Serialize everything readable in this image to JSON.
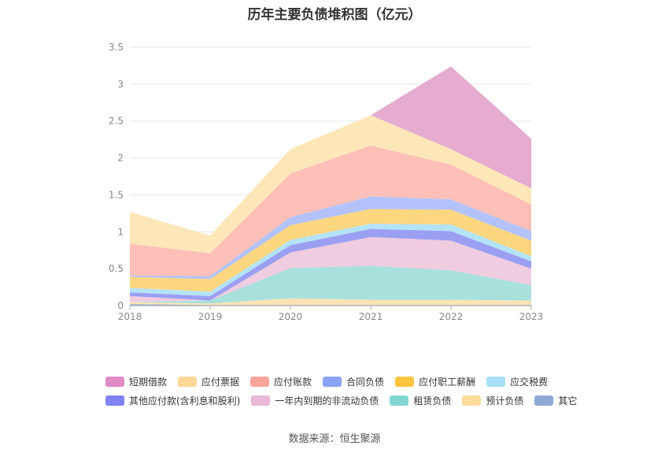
{
  "title": "历年主要负债堆积图（亿元）",
  "source": "数据来源：恒生聚源",
  "chart_data": {
    "type": "area",
    "stacked": true,
    "x": [
      "2018",
      "2019",
      "2020",
      "2021",
      "2022",
      "2023"
    ],
    "ylim": [
      0,
      3.5
    ],
    "yticks": [
      "0",
      "0.5",
      "1",
      "1.5",
      "2",
      "2.5",
      "3",
      "3.5"
    ],
    "grid": true,
    "legend_position": "bottom",
    "series": [
      {
        "name": "其它",
        "color": "#8fa9d6",
        "values": [
          0.02,
          0.01,
          0.01,
          0.01,
          0.01,
          0.01
        ]
      },
      {
        "name": "预计负债",
        "color": "#fde3b5",
        "values": [
          0.03,
          0.02,
          0.09,
          0.07,
          0.07,
          0.06
        ]
      },
      {
        "name": "租赁负债",
        "color": "#a8e0dc",
        "values": [
          0.0,
          0.04,
          0.41,
          0.46,
          0.4,
          0.21
        ]
      },
      {
        "name": "一年内到期的非流动负债",
        "color": "#f0cce0",
        "values": [
          0.08,
          0.0,
          0.21,
          0.39,
          0.4,
          0.22
        ]
      },
      {
        "name": "其他应付款(含利息和股利)",
        "color": "#9b9ff2",
        "values": [
          0.05,
          0.06,
          0.1,
          0.11,
          0.13,
          0.1
        ]
      },
      {
        "name": "应交税费",
        "color": "#b3e3f7",
        "values": [
          0.06,
          0.06,
          0.07,
          0.07,
          0.09,
          0.07
        ]
      },
      {
        "name": "应付职工薪酬",
        "color": "#fdd680",
        "values": [
          0.15,
          0.17,
          0.2,
          0.2,
          0.2,
          0.21
        ]
      },
      {
        "name": "合同负债",
        "color": "#b3c2fb",
        "values": [
          0.02,
          0.04,
          0.11,
          0.17,
          0.14,
          0.13
        ]
      },
      {
        "name": "应付账款",
        "color": "#fdbfb7",
        "values": [
          0.43,
          0.31,
          0.59,
          0.69,
          0.47,
          0.36
        ]
      },
      {
        "name": "应付票据",
        "color": "#fde6b8",
        "values": [
          0.43,
          0.24,
          0.33,
          0.41,
          0.21,
          0.22
        ]
      },
      {
        "name": "短期借款",
        "color": "#e5acd0",
        "values": [
          0.0,
          0.0,
          0.0,
          0.0,
          1.12,
          0.67
        ]
      }
    ],
    "legend": [
      {
        "name": "短期借款",
        "color": "#e08ac4"
      },
      {
        "name": "应付票据",
        "color": "#fdd898"
      },
      {
        "name": "应付账款",
        "color": "#fba49a"
      },
      {
        "name": "合同负债",
        "color": "#8aa3f8"
      },
      {
        "name": "应付职工薪酬",
        "color": "#fdc43f"
      },
      {
        "name": "应交税费",
        "color": "#a6dff6"
      },
      {
        "name": "其他应付款(含利息和股利)",
        "color": "#7f82f2"
      },
      {
        "name": "一年内到期的非流动负债",
        "color": "#eab9d6"
      },
      {
        "name": "租赁负债",
        "color": "#82d6d2"
      },
      {
        "name": "预计负债",
        "color": "#fddc9a"
      },
      {
        "name": "其它",
        "color": "#8fa9d6"
      }
    ]
  }
}
